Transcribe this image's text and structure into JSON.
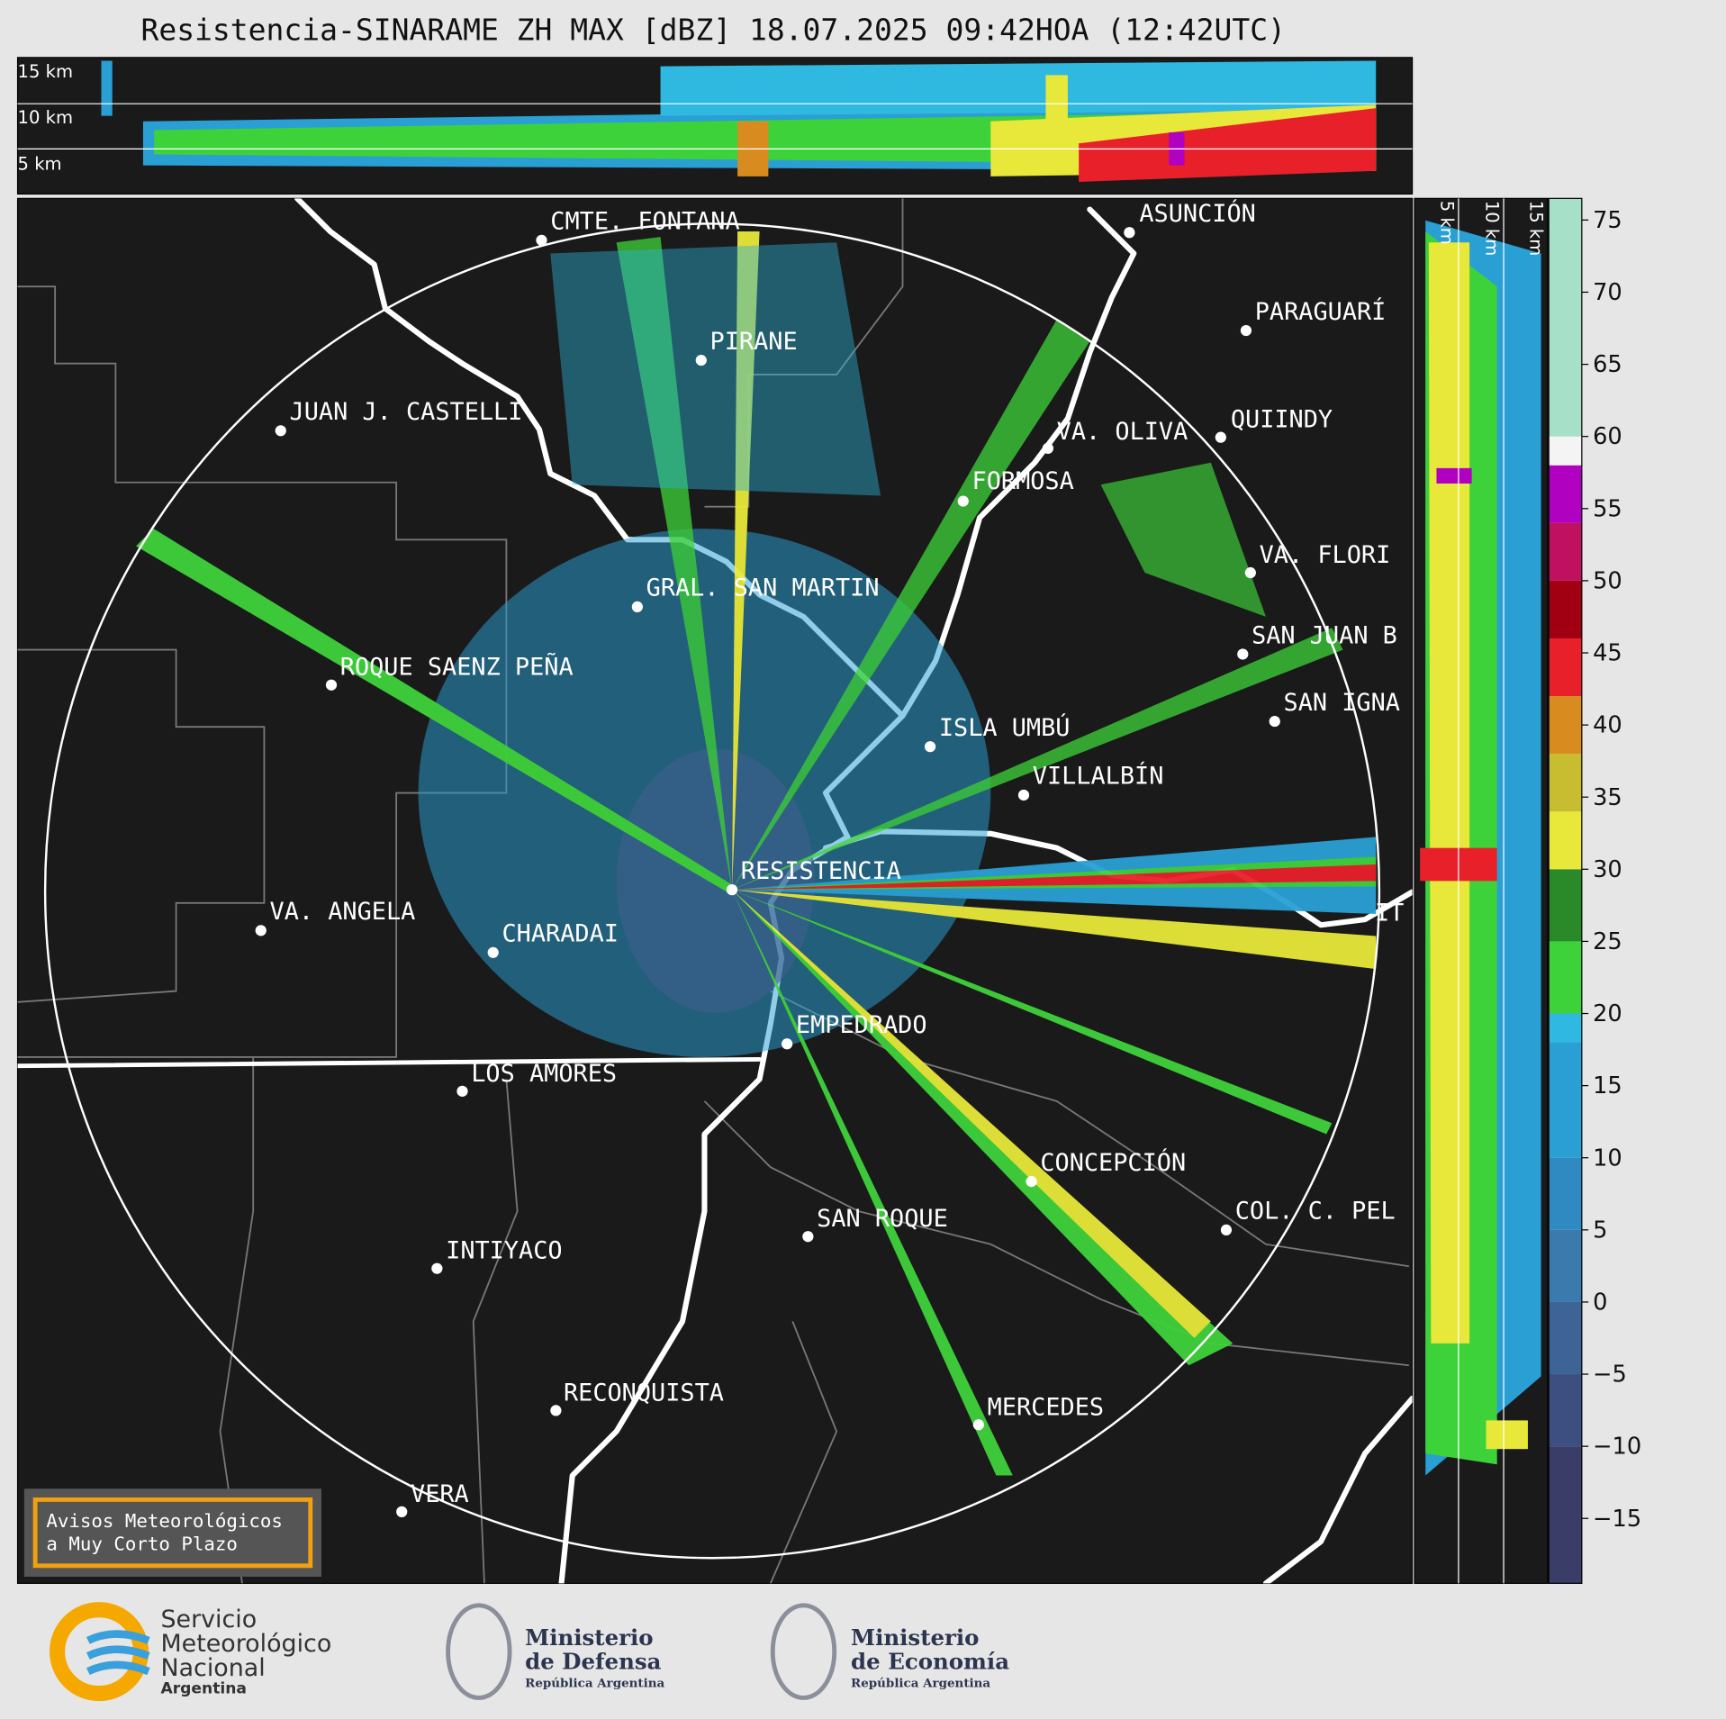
{
  "title": "Resistencia-SINARAME ZH MAX [dBZ] 18.07.2025 09:42HOA (12:42UTC)",
  "height_labels": [
    "15 km",
    "10 km",
    "5 km"
  ],
  "cities": [
    "CMTE. FONTANA",
    "PIRANE",
    "JUAN J. CASTELLI",
    "ASUNCIÓN",
    "PARAGUARÍ",
    "VA. OLIVA",
    "QUIINDY",
    "FORMOSA",
    "VA. FLORI",
    "GRAL. SAN MARTIN",
    "SAN JUAN B",
    "ROQUE SAENZ PEÑA",
    "SAN IGNA",
    "ISLA UMBÚ",
    "VILLALBÍN",
    "RESISTENCIA",
    "VA. ANGELA",
    "CHARADAI",
    "IT",
    "EMPEDRADO",
    "LOS AMORES",
    "CONCEPCIÓN",
    "COL. C. PEL",
    "SAN ROQUE",
    "INTIYACO",
    "RECONQUISTA",
    "MERCEDES",
    "VERA"
  ],
  "colorbar": {
    "ylim": [
      -19.5,
      76.5
    ],
    "ticks": [
      75,
      70,
      65,
      60,
      55,
      50,
      45,
      40,
      35,
      30,
      25,
      20,
      15,
      10,
      5,
      0,
      {
        "value": -5,
        "label": "−5"
      },
      {
        "value": -10,
        "label": "−10"
      },
      {
        "value": -15,
        "label": "−15"
      }
    ],
    "bounds": [
      -19.5,
      -10,
      -5,
      0,
      5,
      10,
      18,
      20,
      25,
      30,
      34,
      38,
      42,
      46,
      50,
      54,
      58,
      60,
      76.5
    ],
    "colors": [
      "#3a3d68",
      "#3d4f80",
      "#3d6494",
      "#3a7aac",
      "#2f8ac2",
      "#2a9fd4",
      "#2fb8e0",
      "#3ed23a",
      "#2a8a2a",
      "#e8e83a",
      "#c8bc30",
      "#d88c20",
      "#e8202a",
      "#a00012",
      "#c01060",
      "#b000c0",
      "#f4f4f4",
      "#a6e0c8"
    ]
  },
  "warning_box": [
    "Avisos Meteorológicos",
    "a Muy Corto Plazo"
  ],
  "logos": {
    "smn": [
      "Servicio",
      "Meteorológico",
      "Nacional",
      "Argentina"
    ],
    "defensa": [
      "Ministerio",
      "de Defensa",
      "República Argentina"
    ],
    "economia": [
      "Ministerio",
      "de Economía",
      "República Argentina"
    ]
  }
}
